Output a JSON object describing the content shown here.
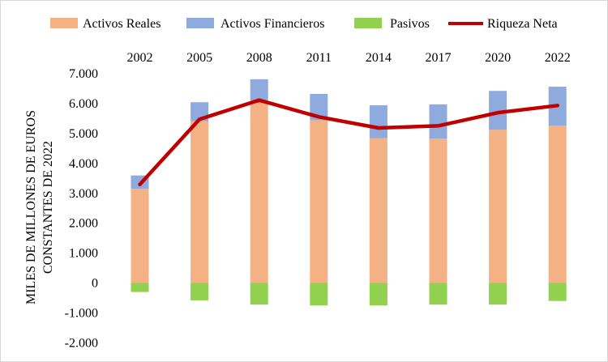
{
  "chart_data": {
    "type": "bar",
    "title": "",
    "categories": [
      "2002",
      "2005",
      "2008",
      "2011",
      "2014",
      "2017",
      "2020",
      "2022"
    ],
    "series": [
      {
        "name": "Activos Reales",
        "kind": "bar",
        "color": "#f4b183",
        "values": [
          3150,
          5420,
          6120,
          5450,
          4850,
          4830,
          5130,
          5270
        ]
      },
      {
        "name": "Activos Financieros",
        "kind": "bar",
        "color": "#8faadc",
        "values": [
          450,
          630,
          700,
          880,
          1100,
          1150,
          1300,
          1300
        ]
      },
      {
        "name": "Pasivos",
        "kind": "bar",
        "color": "#92d050",
        "values": [
          -300,
          -580,
          -720,
          -750,
          -750,
          -720,
          -720,
          -600
        ]
      },
      {
        "name": "Riqueza Neta",
        "kind": "line",
        "color": "#c00000",
        "values": [
          3300,
          5480,
          6120,
          5560,
          5190,
          5260,
          5700,
          5940
        ]
      }
    ],
    "ylabel_line1": "MILES DE MILLONES DE EUROS",
    "ylabel_line2": "CONSTANTES DE 2022",
    "ylim": [
      -2000,
      7000
    ],
    "yticks": [
      7000,
      6000,
      5000,
      4000,
      3000,
      2000,
      1000,
      0,
      -1000,
      -2000
    ],
    "ytick_labels": [
      "7.000",
      "6.000",
      "5.000",
      "4.000",
      "3.000",
      "2.000",
      "1.000",
      "0",
      "-1.000",
      "-2.000"
    ],
    "legend_position": "top"
  }
}
